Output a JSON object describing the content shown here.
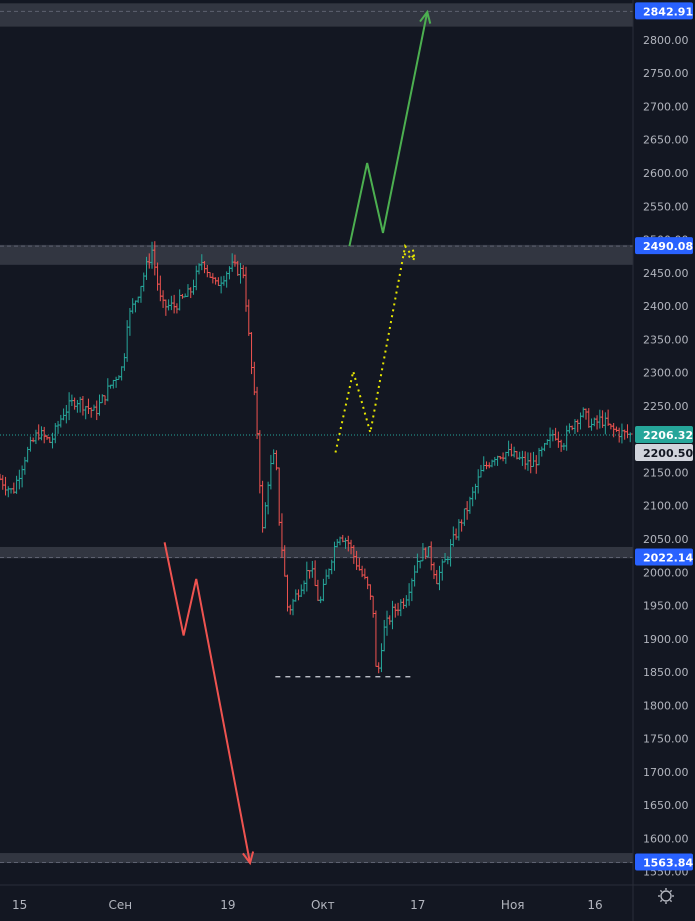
{
  "chart_data": {
    "type": "candlestick",
    "y_axis": {
      "range": [
        1530,
        2860
      ],
      "ticks": [
        "2800.00",
        "2750.00",
        "2700.00",
        "2650.00",
        "2600.00",
        "2550.00",
        "2500.00",
        "2450.00",
        "2400.00",
        "2350.00",
        "2300.00",
        "2250.00",
        "2200.00",
        "2150.00",
        "2100.00",
        "2050.00",
        "2000.00",
        "1950.00",
        "1900.00",
        "1850.00",
        "1800.00",
        "1750.00",
        "1700.00",
        "1650.00",
        "1600.00",
        "1550.00"
      ],
      "tick_values": [
        2800,
        2750,
        2700,
        2650,
        2600,
        2550,
        2500,
        2450,
        2400,
        2350,
        2300,
        2250,
        2200,
        2150,
        2100,
        2050,
        2000,
        1950,
        1900,
        1850,
        1800,
        1750,
        1700,
        1650,
        1600,
        1550
      ]
    },
    "x_axis": {
      "labels": [
        "15",
        "Сен",
        "19",
        "Окт",
        "17",
        "Ноя",
        "16"
      ],
      "label_positions": [
        0,
        0.19,
        0.36,
        0.51,
        0.66,
        0.81,
        0.94
      ]
    },
    "levels": [
      {
        "value": 2842.91,
        "label": "2842.91",
        "zone_low": 2820,
        "zone_high": 2855
      },
      {
        "value": 2490.08,
        "label": "2490.08",
        "zone_low": 2462,
        "zone_high": 2492
      },
      {
        "value": 2022.14,
        "label": "2022.14",
        "zone_low": 2021,
        "zone_high": 2038
      },
      {
        "value": 1563.84,
        "label": "1563.84",
        "zone_low": 1563,
        "zone_high": 1578
      }
    ],
    "current_price": {
      "value": 2206.32,
      "label": "2206.32",
      "color": "#26a69a"
    },
    "reference_price": {
      "value": 2200.5,
      "label": "2200.50"
    },
    "support_dash": {
      "value": 1843,
      "x_range": [
        0.435,
        0.65
      ]
    },
    "scenarios": [
      {
        "name": "bull",
        "color": "#4caf50",
        "style": "solid",
        "points": [
          [
            0.552,
            2490
          ],
          [
            0.58,
            2615
          ],
          [
            0.605,
            2510
          ],
          [
            0.675,
            2842
          ]
        ]
      },
      {
        "name": "bear",
        "color": "#ef5350",
        "style": "solid",
        "points": [
          [
            0.26,
            2045
          ],
          [
            0.29,
            1905
          ],
          [
            0.31,
            1990
          ],
          [
            0.395,
            1563
          ]
        ]
      },
      {
        "name": "alt",
        "color": "#e6e600",
        "style": "dotted",
        "points": [
          [
            0.53,
            2180
          ],
          [
            0.558,
            2302
          ],
          [
            0.585,
            2210
          ],
          [
            0.64,
            2490
          ],
          [
            0.655,
            2470
          ]
        ]
      }
    ],
    "series": [
      {
        "name": "price",
        "up_color": "#26a69a",
        "down_color": "#ef5350",
        "anchors": [
          [
            0.0,
            2140
          ],
          [
            0.02,
            2120
          ],
          [
            0.04,
            2175
          ],
          [
            0.06,
            2210
          ],
          [
            0.08,
            2195
          ],
          [
            0.1,
            2240
          ],
          [
            0.12,
            2260
          ],
          [
            0.15,
            2240
          ],
          [
            0.18,
            2290
          ],
          [
            0.195,
            2310
          ],
          [
            0.2,
            2375
          ],
          [
            0.22,
            2425
          ],
          [
            0.24,
            2485
          ],
          [
            0.255,
            2400
          ],
          [
            0.275,
            2400
          ],
          [
            0.3,
            2420
          ],
          [
            0.32,
            2470
          ],
          [
            0.34,
            2430
          ],
          [
            0.365,
            2460
          ],
          [
            0.385,
            2450
          ],
          [
            0.395,
            2330
          ],
          [
            0.405,
            2230
          ],
          [
            0.415,
            2060
          ],
          [
            0.425,
            2150
          ],
          [
            0.435,
            2180
          ],
          [
            0.44,
            2090
          ],
          [
            0.455,
            1940
          ],
          [
            0.47,
            1970
          ],
          [
            0.49,
            2010
          ],
          [
            0.505,
            1950
          ],
          [
            0.52,
            2010
          ],
          [
            0.535,
            2060
          ],
          [
            0.55,
            2045
          ],
          [
            0.565,
            2010
          ],
          [
            0.58,
            1980
          ],
          [
            0.59,
            1940
          ],
          [
            0.595,
            1830
          ],
          [
            0.605,
            1910
          ],
          [
            0.62,
            1940
          ],
          [
            0.64,
            1960
          ],
          [
            0.66,
            2020
          ],
          [
            0.675,
            2035
          ],
          [
            0.69,
            1990
          ],
          [
            0.705,
            2020
          ],
          [
            0.725,
            2070
          ],
          [
            0.74,
            2100
          ],
          [
            0.76,
            2150
          ],
          [
            0.78,
            2175
          ],
          [
            0.8,
            2180
          ],
          [
            0.82,
            2170
          ],
          [
            0.84,
            2160
          ],
          [
            0.86,
            2185
          ],
          [
            0.875,
            2210
          ],
          [
            0.89,
            2195
          ],
          [
            0.905,
            2225
          ],
          [
            0.92,
            2240
          ],
          [
            0.935,
            2220
          ],
          [
            0.95,
            2230
          ],
          [
            0.965,
            2215
          ],
          [
            0.985,
            2208
          ],
          [
            1.0,
            2206
          ]
        ]
      }
    ]
  },
  "controls": {
    "settings_icon": "gear-icon"
  }
}
